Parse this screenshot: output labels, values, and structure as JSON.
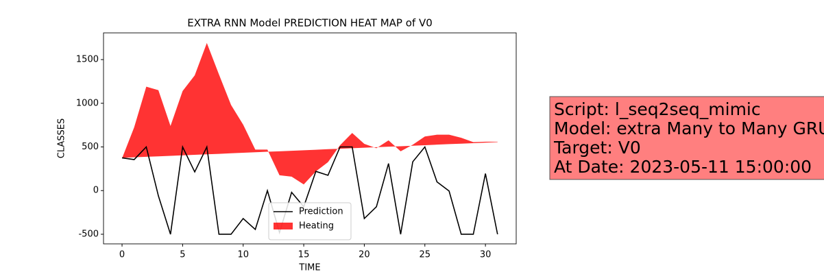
{
  "chart_data": {
    "type": "line_fill",
    "title": "EXTRA RNN Model PREDICTION HEAT MAP of V0",
    "x_label": "TIME",
    "y_label": "CLASSES",
    "x": [
      0,
      1,
      2,
      3,
      4,
      5,
      6,
      7,
      8,
      9,
      10,
      11,
      12,
      13,
      14,
      15,
      16,
      17,
      18,
      19,
      20,
      21,
      22,
      23,
      24,
      25,
      26,
      27,
      28,
      29,
      30,
      31
    ],
    "series": [
      {
        "name": "Prediction",
        "color": "#000000",
        "values": [
          375,
          355,
          500,
          -60,
          -500,
          500,
          214,
          500,
          -500,
          -500,
          -320,
          -445,
          0,
          -480,
          -20,
          -185,
          220,
          175,
          500,
          500,
          -320,
          -185,
          310,
          -500,
          330,
          500,
          100,
          -5,
          -500,
          -500,
          195,
          -500
        ]
      },
      {
        "name": "Heating",
        "color": "#ff0000",
        "values": [
          370,
          724,
          1190,
          1150,
          740,
          1140,
          1320,
          1690,
          1330,
          980,
          755,
          470,
          470,
          175,
          160,
          70,
          220,
          325,
          520,
          660,
          535,
          485,
          575,
          450,
          525,
          620,
          640,
          640,
          605,
          555,
          560,
          560
        ],
        "baseline": [
          375,
          381,
          387,
          392,
          398,
          404,
          410,
          416,
          421,
          427,
          433,
          439,
          445,
          450,
          456,
          462,
          468,
          474,
          479,
          485,
          491,
          497,
          503,
          508,
          514,
          520,
          526,
          532,
          537,
          543,
          549,
          555
        ]
      }
    ],
    "xlim": [
      -1.53,
      32.54
    ],
    "ylim": [
      -610,
      1806
    ],
    "xticks": [
      0,
      5,
      10,
      15,
      20,
      25,
      30
    ],
    "yticks": [
      -500,
      0,
      500,
      1000,
      1500
    ],
    "legend": "lower center",
    "annotation": [
      "Script: l_seq2seq_mimic",
      "Model: extra Many to Many GRU",
      "Target: V0",
      "At Date: 2023-05-11 15:00:00"
    ]
  }
}
